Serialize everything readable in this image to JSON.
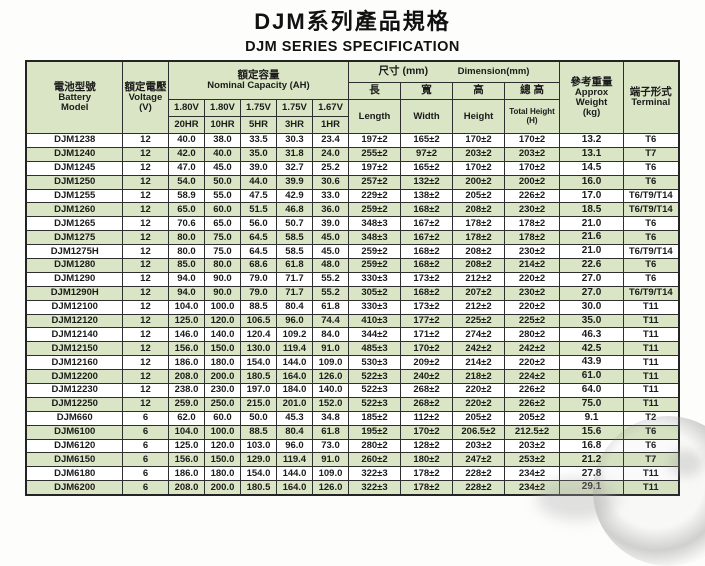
{
  "page": {
    "title": "DJM系列產品規格",
    "subtitle": "DJM SERIES SPECIFICATION"
  },
  "colors": {
    "row_green": "#d9e5c4",
    "row_white": "#ffffff",
    "border": "#2e2e2e",
    "text": "#1b1b1b"
  },
  "table": {
    "header": {
      "battery": {
        "zh": "電池型號",
        "en": "Battery\nModel"
      },
      "voltage": {
        "zh": "額定電壓",
        "en": "Voltage\n(V)"
      },
      "capacity": {
        "zh": "額定容量",
        "en": "Nominal  Capacity  (AH)",
        "voltages": [
          "1.80V",
          "1.80V",
          "1.75V",
          "1.75V",
          "1.67V"
        ],
        "rates": [
          "20HR",
          "10HR",
          "5HR",
          "3HR",
          "1HR"
        ]
      },
      "dimension": {
        "zh": "尺寸 (mm)",
        "en": "Dimension(mm)",
        "sub_zh": [
          "長",
          "寬",
          "高",
          "總 高"
        ],
        "sub_en": [
          "Length",
          "Width",
          "Height",
          "Total Height\n(H)"
        ]
      },
      "weight": {
        "zh": "參考重量",
        "en": "Approx\nWeight\n(kg)"
      },
      "terminal": {
        "zh": "端子形式",
        "en": "Terminal"
      }
    },
    "rows": [
      [
        "DJM1238",
        "12",
        "40.0",
        "38.0",
        "33.5",
        "30.3",
        "23.4",
        "197±2",
        "165±2",
        "170±2",
        "170±2",
        "13.2",
        "T6"
      ],
      [
        "DJM1240",
        "12",
        "42.0",
        "40.0",
        "35.0",
        "31.8",
        "24.0",
        "255±2",
        "97±2",
        "203±2",
        "203±2",
        "13.1",
        "T7"
      ],
      [
        "DJM1245",
        "12",
        "47.0",
        "45.0",
        "39.0",
        "32.7",
        "25.2",
        "197±2",
        "165±2",
        "170±2",
        "170±2",
        "14.5",
        "T6"
      ],
      [
        "DJM1250",
        "12",
        "54.0",
        "50.0",
        "44.0",
        "39.9",
        "30.6",
        "257±2",
        "132±2",
        "200±2",
        "200±2",
        "16.0",
        "T6"
      ],
      [
        "DJM1255",
        "12",
        "58.9",
        "55.0",
        "47.5",
        "42.9",
        "33.0",
        "229±2",
        "138±2",
        "205±2",
        "226±2",
        "17.0",
        "T6/T9/T14"
      ],
      [
        "DJM1260",
        "12",
        "65.0",
        "60.0",
        "51.5",
        "46.8",
        "36.0",
        "259±2",
        "168±2",
        "208±2",
        "230±2",
        "18.5",
        "T6/T9/T14"
      ],
      [
        "DJM1265",
        "12",
        "70.6",
        "65.0",
        "56.0",
        "50.7",
        "39.0",
        "348±3",
        "167±2",
        "178±2",
        "178±2",
        "21.0",
        "T6"
      ],
      [
        "DJM1275",
        "12",
        "80.0",
        "75.0",
        "64.5",
        "58.5",
        "45.0",
        "348±3",
        "167±2",
        "178±2",
        "178±2",
        "21.6",
        "T6"
      ],
      [
        "DJM1275H",
        "12",
        "80.0",
        "75.0",
        "64.5",
        "58.5",
        "45.0",
        "259±2",
        "168±2",
        "208±2",
        "230±2",
        "21.0",
        "T6/T9/T14"
      ],
      [
        "DJM1280",
        "12",
        "85.0",
        "80.0",
        "68.6",
        "61.8",
        "48.0",
        "259±2",
        "168±2",
        "208±2",
        "214±2",
        "22.6",
        "T6"
      ],
      [
        "DJM1290",
        "12",
        "94.0",
        "90.0",
        "79.0",
        "71.7",
        "55.2",
        "330±3",
        "173±2",
        "212±2",
        "220±2",
        "27.0",
        "T6"
      ],
      [
        "DJM1290H",
        "12",
        "94.0",
        "90.0",
        "79.0",
        "71.7",
        "55.2",
        "305±2",
        "168±2",
        "207±2",
        "230±2",
        "27.0",
        "T6/T9/T14"
      ],
      [
        "DJM12100",
        "12",
        "104.0",
        "100.0",
        "88.5",
        "80.4",
        "61.8",
        "330±3",
        "173±2",
        "212±2",
        "220±2",
        "30.0",
        "T11"
      ],
      [
        "DJM12120",
        "12",
        "125.0",
        "120.0",
        "106.5",
        "96.0",
        "74.4",
        "410±3",
        "177±2",
        "225±2",
        "225±2",
        "35.0",
        "T11"
      ],
      [
        "DJM12140",
        "12",
        "146.0",
        "140.0",
        "120.4",
        "109.2",
        "84.0",
        "344±2",
        "171±2",
        "274±2",
        "280±2",
        "46.3",
        "T11"
      ],
      [
        "DJM12150",
        "12",
        "156.0",
        "150.0",
        "130.0",
        "119.4",
        "91.0",
        "485±3",
        "170±2",
        "242±2",
        "242±2",
        "42.5",
        "T11"
      ],
      [
        "DJM12160",
        "12",
        "186.0",
        "180.0",
        "154.0",
        "144.0",
        "109.0",
        "530±3",
        "209±2",
        "214±2",
        "220±2",
        "43.9",
        "T11"
      ],
      [
        "DJM12200",
        "12",
        "208.0",
        "200.0",
        "180.5",
        "164.0",
        "126.0",
        "522±3",
        "240±2",
        "218±2",
        "224±2",
        "61.0",
        "T11"
      ],
      [
        "DJM12230",
        "12",
        "238.0",
        "230.0",
        "197.0",
        "184.0",
        "140.0",
        "522±3",
        "268±2",
        "220±2",
        "226±2",
        "64.0",
        "T11"
      ],
      [
        "DJM12250",
        "12",
        "259.0",
        "250.0",
        "215.0",
        "201.0",
        "152.0",
        "522±3",
        "268±2",
        "220±2",
        "226±2",
        "75.0",
        "T11"
      ],
      [
        "DJM660",
        "6",
        "62.0",
        "60.0",
        "50.0",
        "45.3",
        "34.8",
        "185±2",
        "112±2",
        "205±2",
        "205±2",
        "9.1",
        "T2"
      ],
      [
        "DJM6100",
        "6",
        "104.0",
        "100.0",
        "88.5",
        "80.4",
        "61.8",
        "195±2",
        "170±2",
        "206.5±2",
        "212.5±2",
        "15.6",
        "T6"
      ],
      [
        "DJM6120",
        "6",
        "125.0",
        "120.0",
        "103.0",
        "96.0",
        "73.0",
        "280±2",
        "128±2",
        "203±2",
        "203±2",
        "16.8",
        "T6"
      ],
      [
        "DJM6150",
        "6",
        "156.0",
        "150.0",
        "129.0",
        "119.4",
        "91.0",
        "260±2",
        "180±2",
        "247±2",
        "253±2",
        "21.2",
        "T7"
      ],
      [
        "DJM6180",
        "6",
        "186.0",
        "180.0",
        "154.0",
        "144.0",
        "109.0",
        "322±3",
        "178±2",
        "228±2",
        "234±2",
        "27.8",
        "T11"
      ],
      [
        "DJM6200",
        "6",
        "208.0",
        "200.0",
        "180.5",
        "164.0",
        "126.0",
        "322±3",
        "178±2",
        "228±2",
        "234±2",
        "29.1",
        "T11"
      ]
    ]
  }
}
